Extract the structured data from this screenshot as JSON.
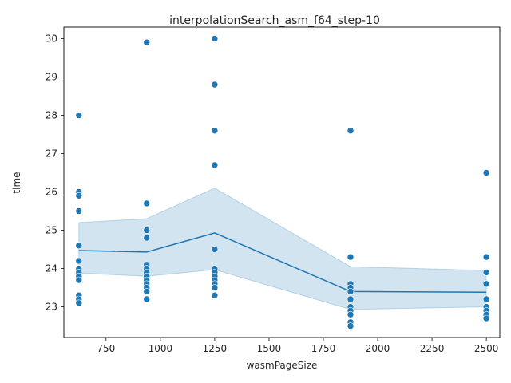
{
  "chart_data": {
    "type": "scatter",
    "title": "interpolationSearch_asm_f64_step-10",
    "xlabel": "wasmPageSize",
    "ylabel": "time",
    "xlim": [
      556,
      2562
    ],
    "ylim": [
      22.2,
      30.3
    ],
    "xticks": [
      750,
      1000,
      1250,
      1500,
      1750,
      2000,
      2250,
      2500
    ],
    "yticks": [
      23,
      24,
      25,
      26,
      27,
      28,
      29,
      30
    ],
    "grid": false,
    "point_color": "#1f77b4",
    "line_color": "#1f77b4",
    "band_color": "#1f77b4",
    "points": [
      {
        "x": 625,
        "y": [
          28.0,
          26.0,
          25.9,
          25.5,
          24.6,
          24.2,
          24.0,
          23.9,
          23.8,
          23.7,
          23.3,
          23.2,
          23.1
        ]
      },
      {
        "x": 937,
        "y": [
          29.9,
          25.7,
          25.0,
          24.8,
          24.1,
          24.0,
          23.9,
          23.8,
          23.7,
          23.6,
          23.5,
          23.4,
          23.2
        ]
      },
      {
        "x": 1250,
        "y": [
          30.0,
          28.8,
          27.6,
          26.7,
          24.5,
          24.0,
          23.9,
          23.8,
          23.7,
          23.6,
          23.5,
          23.3
        ]
      },
      {
        "x": 1875,
        "y": [
          27.6,
          24.3,
          23.6,
          23.5,
          23.4,
          23.2,
          23.0,
          22.9,
          22.8,
          22.6,
          22.5
        ]
      },
      {
        "x": 2500,
        "y": [
          26.5,
          24.3,
          23.9,
          23.6,
          23.2,
          23.0,
          22.9,
          22.8,
          22.7
        ]
      }
    ],
    "mean_line": {
      "x": [
        625,
        937,
        1250,
        1875,
        2500
      ],
      "y": [
        24.47,
        24.43,
        24.93,
        23.4,
        23.38
      ]
    },
    "ci_band": {
      "x": [
        625,
        937,
        1250,
        1875,
        2500
      ],
      "lower": [
        23.88,
        23.8,
        23.97,
        22.93,
        23.0
      ],
      "upper": [
        25.2,
        25.3,
        26.1,
        24.05,
        23.95
      ]
    }
  }
}
